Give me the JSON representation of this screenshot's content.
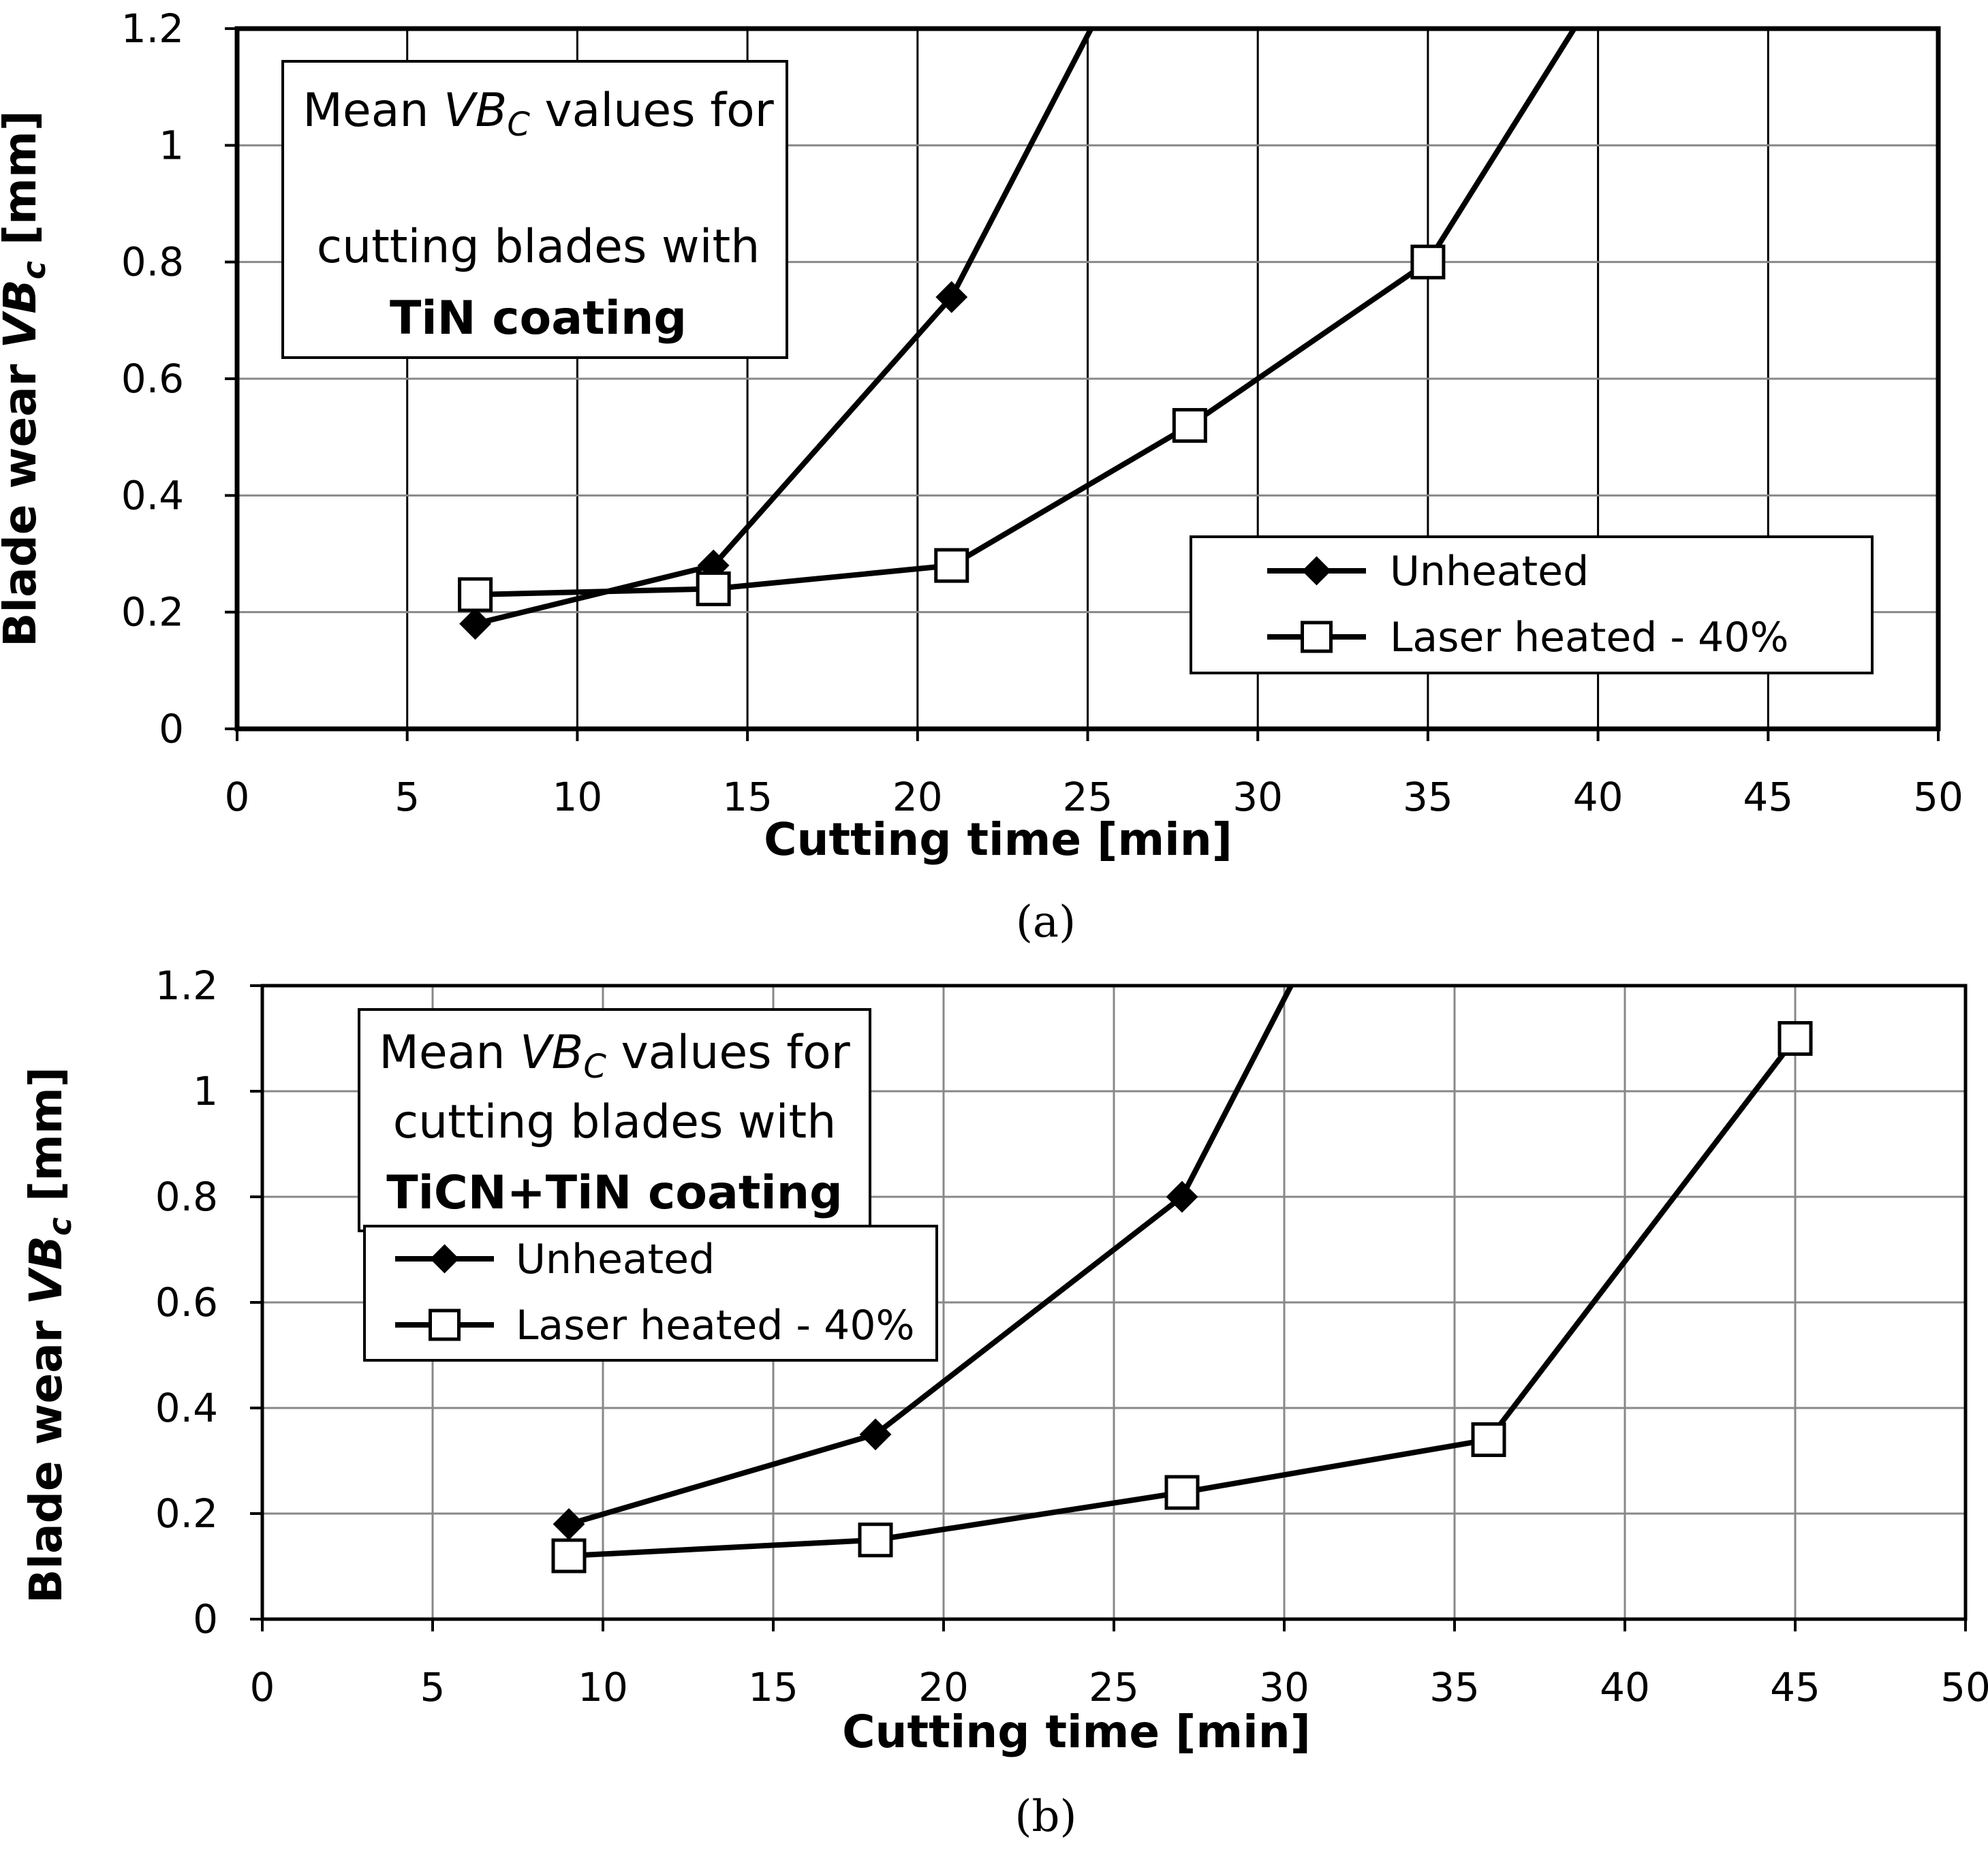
{
  "chart_data": [
    {
      "type": "line",
      "panel": "a",
      "caption": "(a)",
      "annotation": {
        "line1_prefix": "Mean ",
        "line1_var": "VB",
        "line1_sub": "C",
        "line1_suffix": " values for",
        "line2": "cutting blades with",
        "line3": "TiN coating"
      },
      "xlabel": "Cutting  time [min]",
      "ylabel_text": "Blade  wear  ",
      "ylabel_var": "VB",
      "ylabel_sub": "c",
      "ylabel_unit": " [mm]",
      "xlim": [
        0,
        50
      ],
      "ylim": [
        0,
        1.2
      ],
      "xticks": [
        "0",
        "5",
        "10",
        "15",
        "20",
        "25",
        "30",
        "35",
        "40",
        "45",
        "50"
      ],
      "yticks": [
        "0",
        "0.2",
        "0.4",
        "0.6",
        "0.8",
        "1",
        "1.2"
      ],
      "grid": true,
      "legend_position": "bottom-right",
      "series": [
        {
          "name": "Unheated",
          "marker": "diamond",
          "x": [
            7,
            14,
            21,
            25.1
          ],
          "y": [
            0.18,
            0.28,
            0.74,
            1.2
          ]
        },
        {
          "name": "Laser heated - 40%",
          "marker": "square",
          "x": [
            7,
            14,
            21,
            28,
            35,
            39.3
          ],
          "y": [
            0.23,
            0.24,
            0.28,
            0.52,
            0.8,
            1.2
          ]
        }
      ],
      "series_markers_last_index": [
        2,
        4
      ]
    },
    {
      "type": "line",
      "panel": "b",
      "caption": "(b)",
      "annotation": {
        "line1_prefix": "Mean ",
        "line1_var": "VB",
        "line1_sub": "C",
        "line1_suffix": " values for",
        "line2": "cutting blades with",
        "line3": "TiCN+TiN coating"
      },
      "xlabel": "Cutting  time [min]",
      "ylabel_text": "Blade  wear  ",
      "ylabel_var": "VB",
      "ylabel_sub": "c",
      "ylabel_unit": " [mm]",
      "xlim": [
        0,
        50
      ],
      "ylim": [
        0,
        1.2
      ],
      "xticks": [
        "0",
        "5",
        "10",
        "15",
        "20",
        "25",
        "30",
        "35",
        "40",
        "45",
        "50"
      ],
      "yticks": [
        "0",
        "0.2",
        "0.4",
        "0.6",
        "0.8",
        "1",
        "1.2"
      ],
      "grid": true,
      "legend_position": "top-left",
      "series": [
        {
          "name": "Unheated",
          "marker": "diamond",
          "x": [
            9,
            18,
            27,
            30.2
          ],
          "y": [
            0.18,
            0.35,
            0.8,
            1.2
          ]
        },
        {
          "name": "Laser heated - 40%",
          "marker": "square",
          "x": [
            9,
            18,
            27,
            36,
            45
          ],
          "y": [
            0.12,
            0.15,
            0.24,
            0.34,
            1.1
          ]
        }
      ],
      "series_markers_last_index": [
        2,
        4
      ]
    }
  ]
}
